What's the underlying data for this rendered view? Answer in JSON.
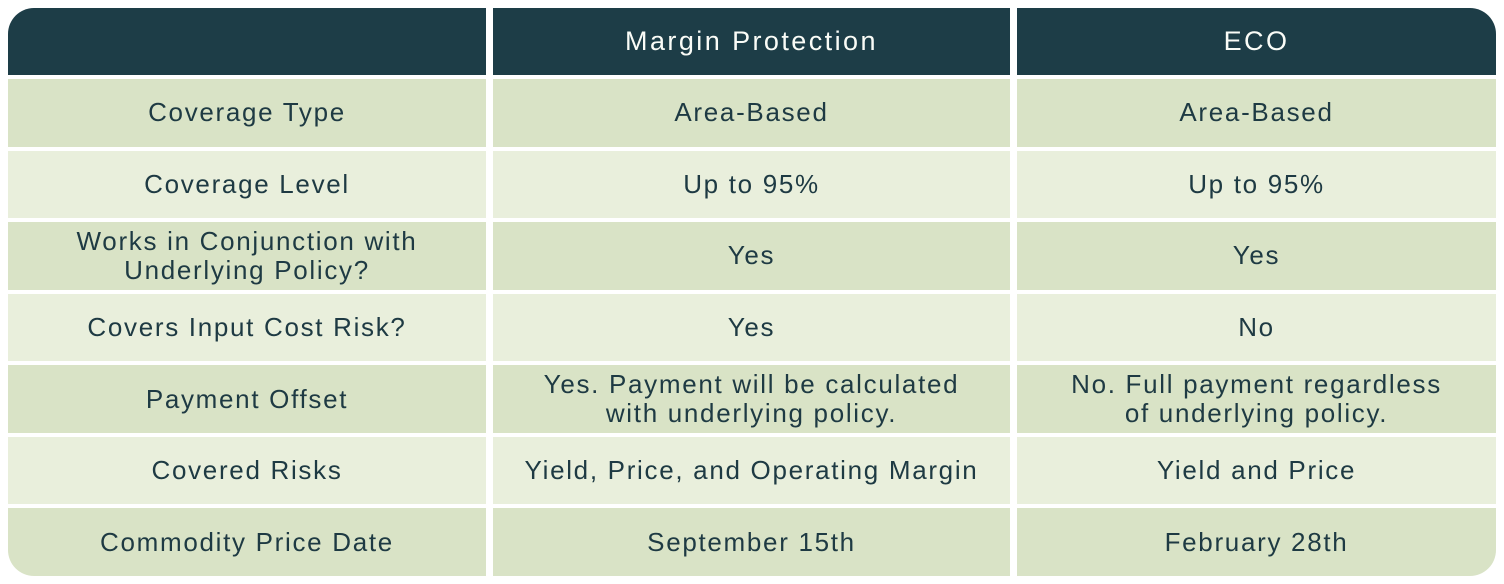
{
  "chart_data": {
    "type": "table",
    "title": "Margin Protection vs ECO comparison table",
    "columns": [
      "",
      "Margin Protection",
      "ECO"
    ],
    "rows": [
      [
        "Coverage Type",
        "Area-Based",
        "Area-Based"
      ],
      [
        "Coverage Level",
        "Up to 95%",
        "Up to 95%"
      ],
      [
        [
          "Works in Conjunction with",
          "Underlying Policy?"
        ],
        "Yes",
        "Yes"
      ],
      [
        "Covers Input Cost Risk?",
        "Yes",
        "No"
      ],
      [
        "Payment Offset",
        [
          "Yes. Payment will be calculated",
          "with underlying policy."
        ],
        [
          "No. Full payment regardless",
          "of underlying policy."
        ]
      ],
      [
        "Covered Risks",
        "Yield, Price, and Operating Margin",
        "Yield and Price"
      ],
      [
        "Commodity Price Date",
        "September 15th",
        "February 28th"
      ]
    ],
    "layout": {
      "header_position": "top",
      "row_striping": "alternating",
      "grid": "white gutters between cells",
      "rounded_corners": "outer table corners only"
    },
    "colors": {
      "header_bg": "#1d3d47",
      "header_text": "#fafcf7",
      "row_dark_bg": "#d9e3c6",
      "row_light_bg": "#e9efdc",
      "body_text": "#1e3a43",
      "page_bg": "#ffffff"
    }
  }
}
